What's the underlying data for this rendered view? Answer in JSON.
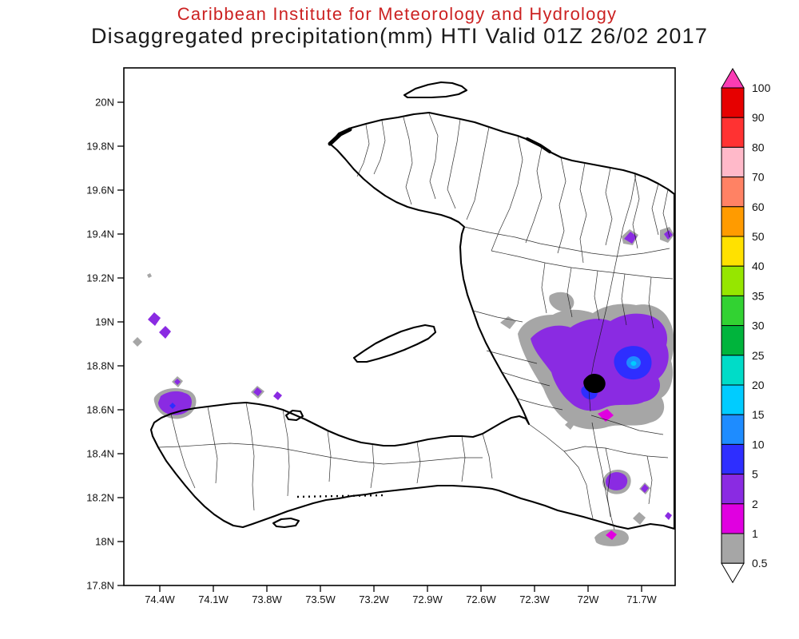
{
  "header": {
    "line1": "Caribbean Institute for Meteorology and Hydrology",
    "line2": "Disaggregated precipitation(mm) HTI Valid 01Z 26/02 2017",
    "line1_color": "#cc2222",
    "line2_color": "#1a1a1a"
  },
  "map": {
    "y_axis_ticks": [
      "20N",
      "19.8N",
      "19.6N",
      "19.4N",
      "19.2N",
      "19N",
      "18.8N",
      "18.6N",
      "18.4N",
      "18.2N",
      "18N",
      "17.8N"
    ],
    "x_axis_ticks": [
      "74.4W",
      "74.1W",
      "73.8W",
      "73.5W",
      "73.2W",
      "72.9W",
      "72.6W",
      "72.3W",
      "72W",
      "71.7W"
    ]
  },
  "colorbar": {
    "tick_labels": [
      "100",
      "90",
      "80",
      "70",
      "60",
      "50",
      "40",
      "35",
      "30",
      "25",
      "20",
      "15",
      "10",
      "5",
      "2",
      "1",
      "0.5"
    ],
    "band_colors_top_to_bottom": [
      "#e60000",
      "#ff3232",
      "#ffb9c9",
      "#ff8264",
      "#ff9b00",
      "#ffe100",
      "#96e600",
      "#32d232",
      "#00b43c",
      "#00dcc8",
      "#00ccff",
      "#1e8cff",
      "#2e2eff",
      "#8a2be2",
      "#e000e0",
      "#a6a6a6"
    ],
    "arrow_top_color": "#fa3cb4",
    "arrow_bottom_color": "#ffffff"
  },
  "palette": {
    "gray": "#a6a6a6",
    "magenta": "#e000e0",
    "purple": "#8a2be2",
    "blue": "#2e2eff",
    "azure": "#1e8cff",
    "cyan": "#00ccff",
    "lake": "#000000"
  },
  "chart_data": {
    "type": "filled-contour-map",
    "variable": "Disaggregated precipitation",
    "unit": "mm",
    "region_code": "HTI",
    "valid_time": "01Z 26/02 2017",
    "lat_ticks": [
      "17.8N",
      "18N",
      "18.2N",
      "18.4N",
      "18.6N",
      "18.8N",
      "19N",
      "19.2N",
      "19.4N",
      "19.6N",
      "19.8N",
      "20N"
    ],
    "lon_ticks": [
      "74.4W",
      "74.1W",
      "73.8W",
      "73.5W",
      "73.2W",
      "72.9W",
      "72.6W",
      "72.3W",
      "72W",
      "71.7W"
    ],
    "contour_levels_mm": [
      0.5,
      1,
      2,
      5,
      10,
      15,
      20,
      25,
      30,
      35,
      40,
      50,
      60,
      70,
      80,
      90,
      100
    ],
    "observed_features": [
      {
        "location": "southeast Haiti near Dominican border ~18.6-18.9N 71.6-72.2W",
        "dominant_band_mm": "2-5",
        "peak_band_mm": "10-15 core near 18.8N 71.8W"
      },
      {
        "location": "offshore northwest ~19N 74.4W",
        "band_mm": "2-5 small cells"
      },
      {
        "location": "tip of northwest (Tiburon) peninsula ~18.6N 74.3W",
        "band_mm": "2-5 with 5-10 speck"
      },
      {
        "location": "scattered cells along south coast ~18-18.2N 71.7-72.1W",
        "band_mm": "0.5-5"
      },
      {
        "location": "small cells east edge ~19.3-19.4N 71.6-71.8W",
        "band_mm": "0.5-5"
      }
    ],
    "legend_position": "right vertical colorbar with over/under arrows"
  }
}
